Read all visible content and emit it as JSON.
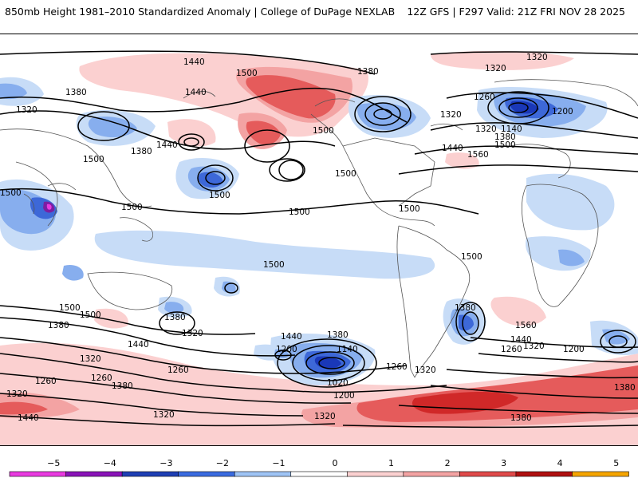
{
  "header": {
    "left_title": "850mb Height 1981–2010 Standardized Anomaly | College of DuPage NEXLAB",
    "right_title": "12Z GFS | F297 Valid: 21Z FRI NOV 28 2025"
  },
  "map": {
    "contour_labels": [
      "1440",
      "1380",
      "1500",
      "1320",
      "1440",
      "1380",
      "1500",
      "1200",
      "1320",
      "1260",
      "1320",
      "1380",
      "1500",
      "1500",
      "1440",
      "1500",
      "1320",
      "1140",
      "1380",
      "1500",
      "1560",
      "1440",
      "1320",
      "1500",
      "1500",
      "1500",
      "1500",
      "1500",
      "1500",
      "1380",
      "1320",
      "1500",
      "1500",
      "1380",
      "1440",
      "1380",
      "1440",
      "1320",
      "1200",
      "1140",
      "1020",
      "1260",
      "1380",
      "1560",
      "1440",
      "1320",
      "1200",
      "1260",
      "1260",
      "1260",
      "1320",
      "1380",
      "1320",
      "1260",
      "1200",
      "1320",
      "1380",
      "1440",
      "1380",
      "1320"
    ],
    "colors": {
      "pos1": "#fbd0d0",
      "pos2": "#f3a3a3",
      "pos3": "#e55b5b",
      "neg1": "#c7dcf7",
      "neg2": "#87aeee",
      "neg3": "#3d68d8",
      "neg4": "#1a38b8",
      "neg5": "#7b1fa2",
      "land": "#555555",
      "contour": "#000000"
    }
  },
  "legend": {
    "labels": [
      "−5",
      "−4",
      "−3",
      "−2",
      "−1",
      "0",
      "1",
      "2",
      "3",
      "4",
      "5"
    ],
    "colors": [
      "#e93ae0",
      "#8a13b8",
      "#1e3fb4",
      "#3a6be0",
      "#9fc4f5",
      "#ffffff",
      "#fbd0d0",
      "#f3a3a3",
      "#e04a4a",
      "#b01010",
      "#f5a500"
    ]
  }
}
